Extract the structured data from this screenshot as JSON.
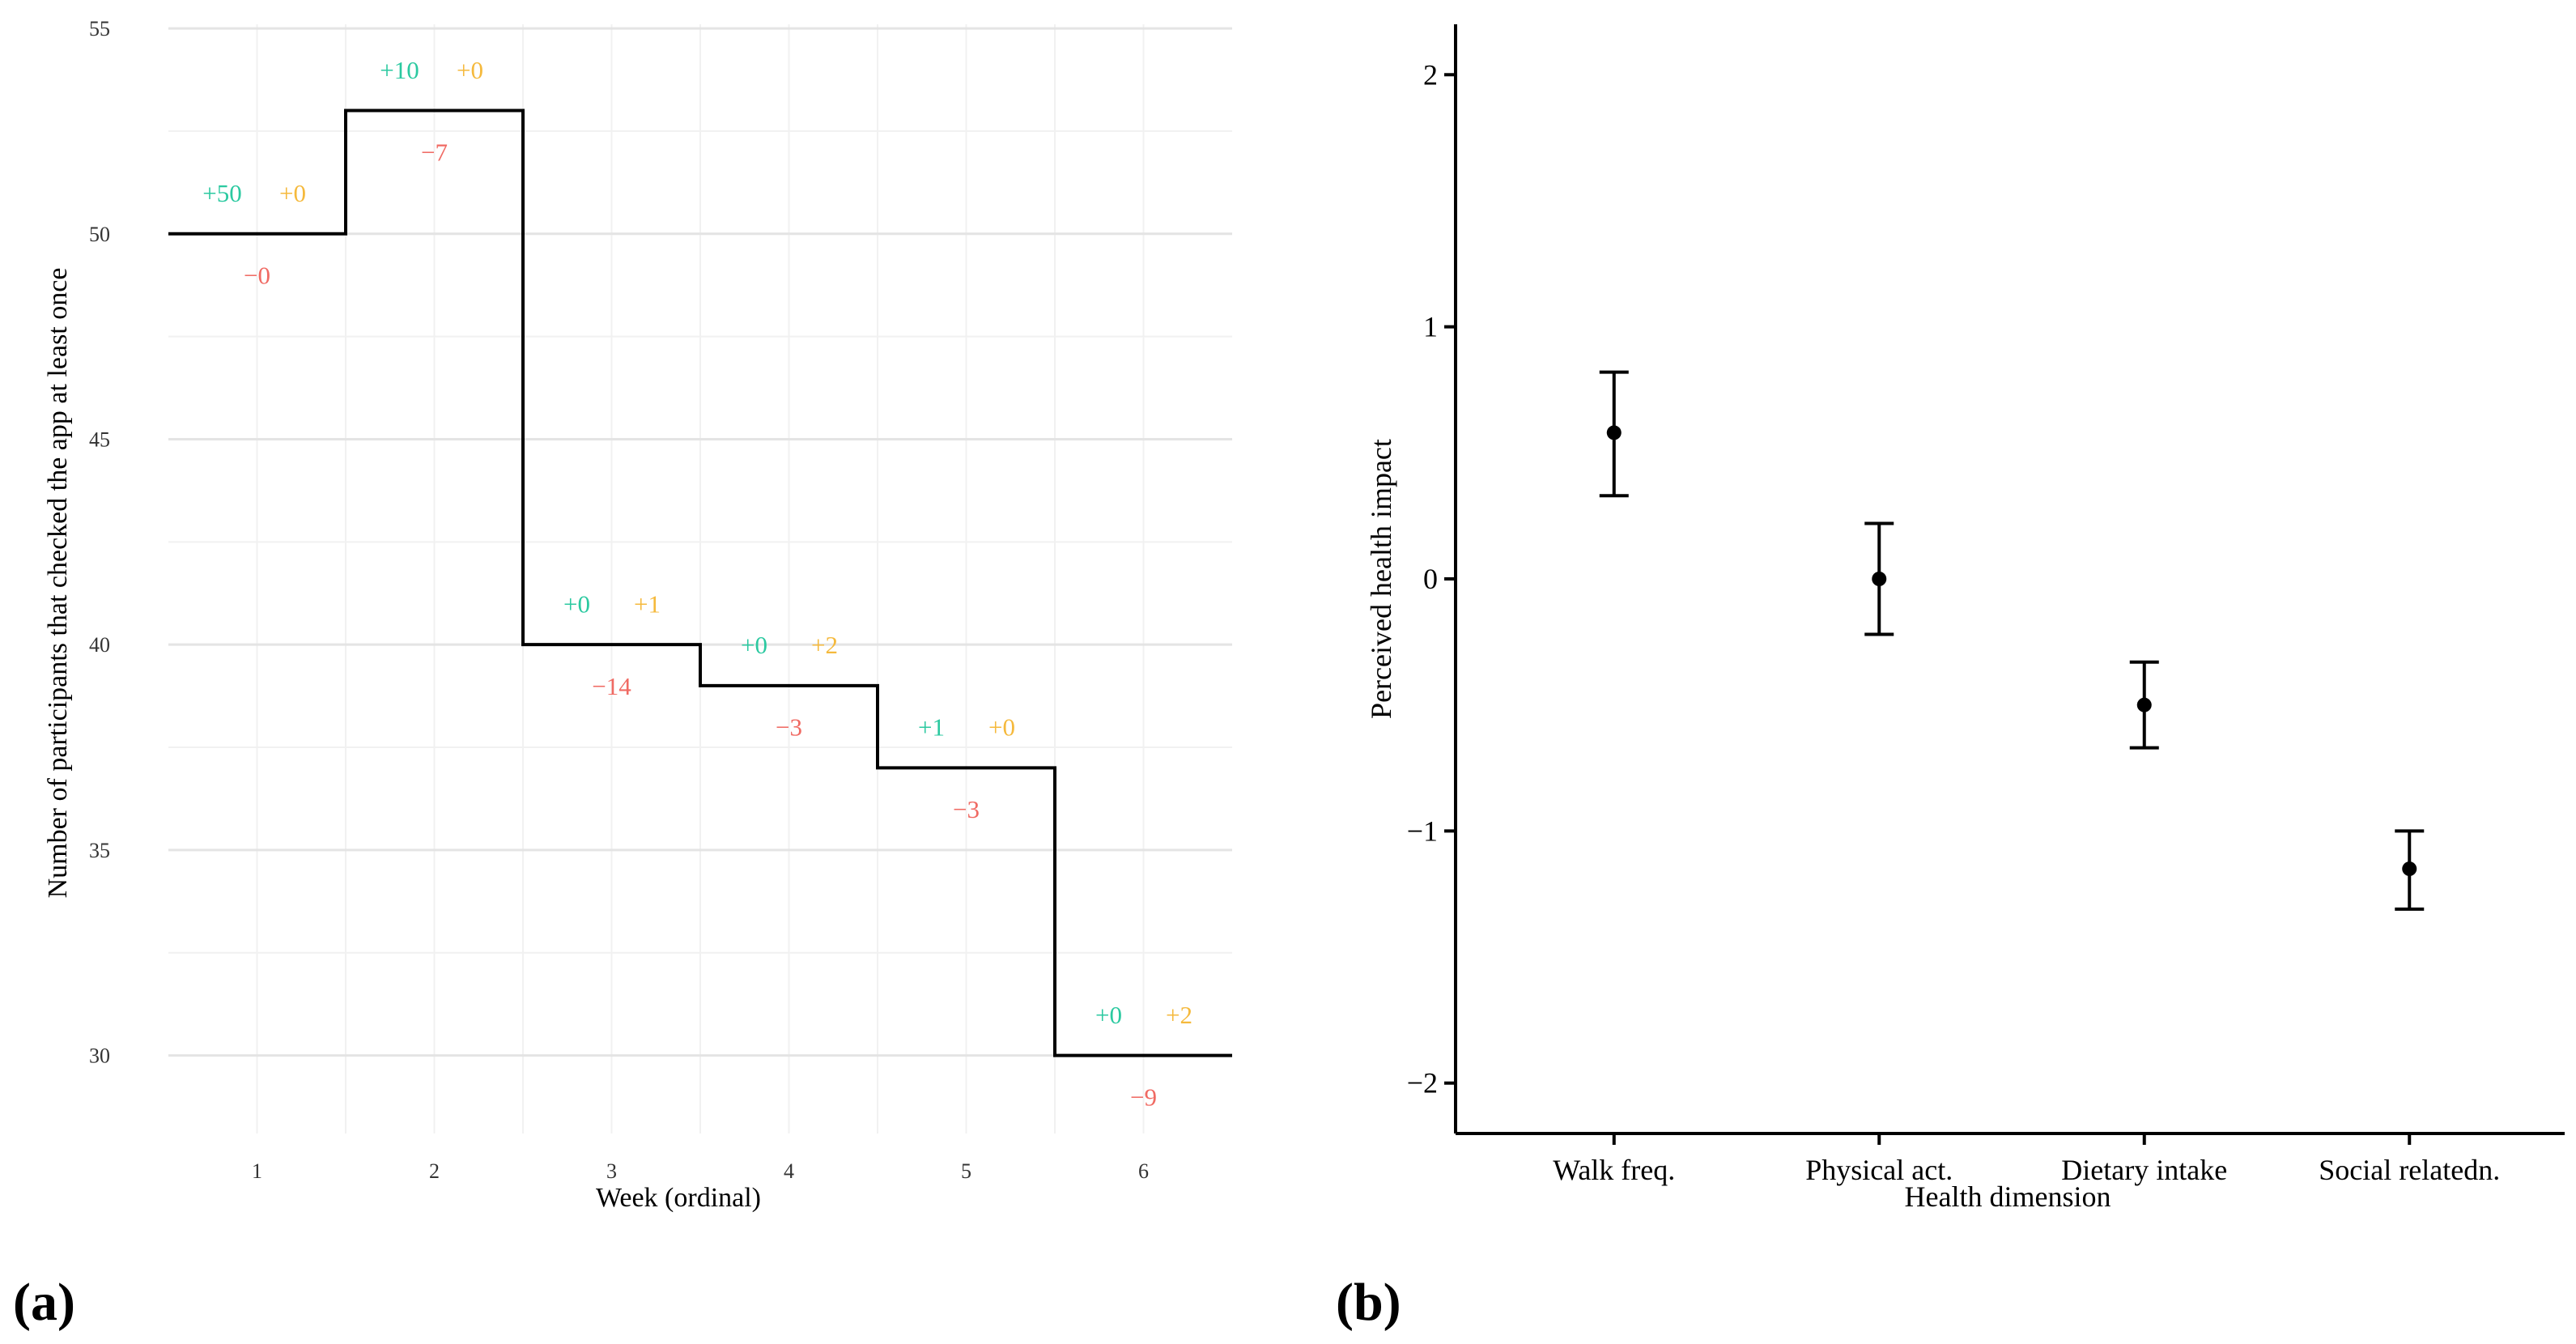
{
  "panel_labels": {
    "a": "(a)",
    "b": "(b)"
  },
  "colors": {
    "new": "#2bc9a0",
    "returning": "#f5b93c",
    "lost": "#f06a63",
    "line": "#000000",
    "grid_major": "#e4e4e4",
    "grid_minor": "#f1f1f1"
  },
  "chart_data": [
    {
      "id": "a",
      "type": "line",
      "step": true,
      "title": "",
      "xlabel": "Week (ordinal)",
      "ylabel": "Number of participants that checked the app at least once",
      "ylim": [
        28.1,
        55.1
      ],
      "yticks": [
        "30",
        "35",
        "40",
        "45",
        "50",
        "55"
      ],
      "categories": [
        "1",
        "2",
        "3",
        "4",
        "5",
        "6"
      ],
      "series": [
        {
          "name": "Participants",
          "values": [
            50,
            53,
            40,
            39,
            37,
            30
          ]
        }
      ],
      "annotations": [
        {
          "week": "1",
          "new": "+50",
          "returning": "+0",
          "lost": "−0"
        },
        {
          "week": "2",
          "new": "+10",
          "returning": "+0",
          "lost": "−7"
        },
        {
          "week": "3",
          "new": "+0",
          "returning": "+1",
          "lost": "−14"
        },
        {
          "week": "4",
          "new": "+0",
          "returning": "+2",
          "lost": "−3"
        },
        {
          "week": "5",
          "new": "+1",
          "returning": "+0",
          "lost": "−3"
        },
        {
          "week": "6",
          "new": "+0",
          "returning": "+2",
          "lost": "−9"
        }
      ]
    },
    {
      "id": "b",
      "type": "scatter",
      "error_bars": true,
      "title": "",
      "xlabel": "Health dimension",
      "ylabel": "Perceived health impact",
      "ylim": [
        -2.2,
        2.2
      ],
      "yticks": [
        "2",
        "1",
        "0",
        "−1",
        "−2"
      ],
      "ytick_values": [
        2,
        1,
        0,
        -1,
        -2
      ],
      "categories": [
        "Walk freq.",
        "Physical act.",
        "Dietary intake",
        "Social relatedn."
      ],
      "series": [
        {
          "name": "Perceived health impact",
          "values": [
            0.58,
            0.0,
            -0.5,
            -1.15
          ],
          "lower": [
            0.33,
            -0.22,
            -0.67,
            -1.31
          ],
          "upper": [
            0.82,
            0.22,
            -0.33,
            -1.0
          ]
        }
      ]
    }
  ]
}
